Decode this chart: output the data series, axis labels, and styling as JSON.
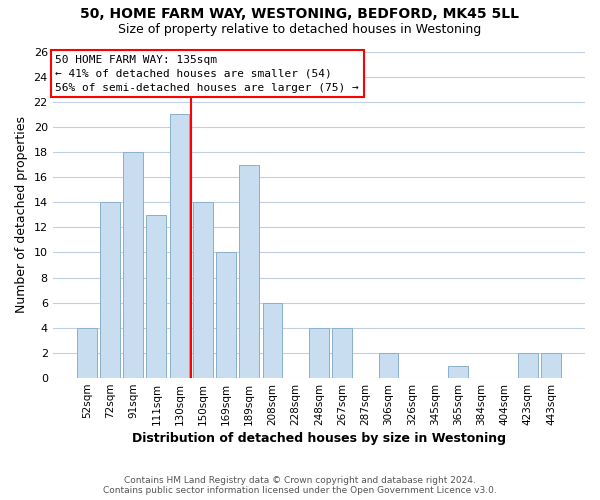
{
  "title1": "50, HOME FARM WAY, WESTONING, BEDFORD, MK45 5LL",
  "title2": "Size of property relative to detached houses in Westoning",
  "xlabel": "Distribution of detached houses by size in Westoning",
  "ylabel": "Number of detached properties",
  "bar_labels": [
    "52sqm",
    "72sqm",
    "91sqm",
    "111sqm",
    "130sqm",
    "150sqm",
    "169sqm",
    "189sqm",
    "208sqm",
    "228sqm",
    "248sqm",
    "267sqm",
    "287sqm",
    "306sqm",
    "326sqm",
    "345sqm",
    "365sqm",
    "384sqm",
    "404sqm",
    "423sqm",
    "443sqm"
  ],
  "bar_values": [
    4,
    14,
    18,
    13,
    21,
    14,
    10,
    17,
    6,
    0,
    4,
    4,
    0,
    2,
    0,
    0,
    1,
    0,
    0,
    2,
    2
  ],
  "bar_color": "#c9ddf0",
  "bar_edge_color": "#8ab0cc",
  "vline_color": "red",
  "vline_x_index": 4.5,
  "annotation_title": "50 HOME FARM WAY: 135sqm",
  "annotation_line1": "← 41% of detached houses are smaller (54)",
  "annotation_line2": "56% of semi-detached houses are larger (75) →",
  "ylim": [
    0,
    26
  ],
  "yticks": [
    0,
    2,
    4,
    6,
    8,
    10,
    12,
    14,
    16,
    18,
    20,
    22,
    24,
    26
  ],
  "footer_line1": "Contains HM Land Registry data © Crown copyright and database right 2024.",
  "footer_line2": "Contains public sector information licensed under the Open Government Licence v3.0.",
  "background_color": "#ffffff",
  "grid_color": "#c0d0e0"
}
